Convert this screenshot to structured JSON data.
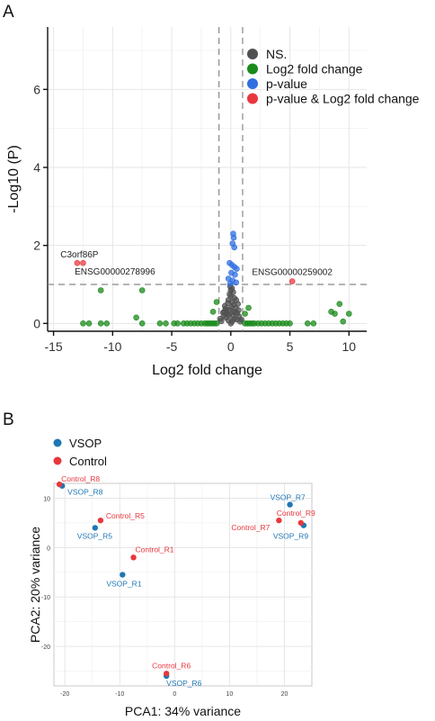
{
  "panels": {
    "a": "A",
    "b": "B"
  },
  "chart_data": [
    {
      "type": "scatter",
      "title": "",
      "xlabel": "Log2 fold change",
      "ylabel": "-Log10 (P)",
      "xlim": [
        -15.5,
        11.5
      ],
      "ylim": [
        -0.2,
        7.6
      ],
      "xticks": [
        -15,
        -10,
        -5,
        0,
        5,
        10
      ],
      "xtick_labels": [
        "-15",
        "-10",
        "-5",
        "0",
        "5",
        "10"
      ],
      "yticks": [
        0,
        2,
        4,
        6
      ],
      "ytick_labels": [
        "0",
        "2",
        "4",
        "6"
      ],
      "threshold_lines": {
        "x": [
          -1,
          1
        ],
        "y": 1
      },
      "grid": true,
      "legend_position": "top-right",
      "legend": [
        {
          "label": "NS.",
          "color": "#505050"
        },
        {
          "label": "Log2 fold change",
          "color": "#1a8a1a"
        },
        {
          "label": "p-value",
          "color": "#2f6fe0"
        },
        {
          "label": "p-value & Log2 fold change",
          "color": "#e8383d"
        }
      ],
      "series": [
        {
          "name": "NS.",
          "color": "#505050",
          "points": [
            [
              0,
              0
            ],
            [
              0.1,
              0.05
            ],
            [
              -0.2,
              0.08
            ],
            [
              0.3,
              0.12
            ],
            [
              -0.4,
              0.15
            ],
            [
              0.5,
              0.1
            ],
            [
              -0.6,
              0.2
            ],
            [
              0.7,
              0.18
            ],
            [
              -0.3,
              0.25
            ],
            [
              0.2,
              0.3
            ],
            [
              -0.1,
              0.35
            ],
            [
              0.4,
              0.4
            ],
            [
              -0.5,
              0.45
            ],
            [
              0.6,
              0.5
            ],
            [
              0.1,
              0.55
            ],
            [
              -0.2,
              0.6
            ],
            [
              0.3,
              0.65
            ],
            [
              0,
              0.7
            ],
            [
              -0.1,
              0.75
            ],
            [
              0.2,
              0.8
            ],
            [
              0,
              0.85
            ],
            [
              0.1,
              0.9
            ],
            [
              -0.05,
              0.95
            ],
            [
              0.8,
              0.05
            ],
            [
              -0.8,
              0.06
            ],
            [
              0.9,
              0.1
            ],
            [
              -0.9,
              0.12
            ],
            [
              0.15,
              0.2
            ],
            [
              -0.15,
              0.22
            ],
            [
              0.35,
              0.28
            ],
            [
              -0.35,
              0.32
            ],
            [
              0.55,
              0.26
            ],
            [
              -0.55,
              0.3
            ],
            [
              0.05,
              0.42
            ],
            [
              0.25,
              0.48
            ],
            [
              -0.25,
              0.52
            ],
            [
              0.45,
              0.6
            ],
            [
              -0.45,
              0.38
            ],
            [
              0.65,
              0.34
            ],
            [
              -0.65,
              0.28
            ]
          ]
        },
        {
          "name": "Log2 fold change",
          "color": "#1a8a1a",
          "points": [
            [
              -12.5,
              0
            ],
            [
              -12,
              0
            ],
            [
              -11,
              0
            ],
            [
              -10.5,
              0
            ],
            [
              -8,
              0.15
            ],
            [
              -7.5,
              0
            ],
            [
              -6,
              0
            ],
            [
              -5.5,
              0
            ],
            [
              -4.8,
              0
            ],
            [
              -4.5,
              0
            ],
            [
              -4,
              0
            ],
            [
              -3.7,
              0
            ],
            [
              -3.4,
              0
            ],
            [
              -3.1,
              0
            ],
            [
              -2.8,
              0
            ],
            [
              -2.5,
              0
            ],
            [
              -2.2,
              0
            ],
            [
              -2,
              0
            ],
            [
              -1.8,
              0
            ],
            [
              -1.6,
              0
            ],
            [
              -1.4,
              0
            ],
            [
              -1.2,
              0
            ],
            [
              1.2,
              0
            ],
            [
              1.4,
              0
            ],
            [
              1.6,
              0
            ],
            [
              1.8,
              0
            ],
            [
              2,
              0
            ],
            [
              2.3,
              0
            ],
            [
              2.6,
              0
            ],
            [
              2.9,
              0
            ],
            [
              3.2,
              0
            ],
            [
              3.5,
              0
            ],
            [
              3.8,
              0
            ],
            [
              4.1,
              0
            ],
            [
              4.4,
              0
            ],
            [
              4.7,
              0
            ],
            [
              5,
              0
            ],
            [
              6.5,
              0
            ],
            [
              7,
              0
            ],
            [
              8.5,
              0.3
            ],
            [
              8.8,
              0.25
            ],
            [
              9.2,
              0.5
            ],
            [
              9.5,
              0.05
            ],
            [
              10,
              0.25
            ],
            [
              -11,
              0.85
            ],
            [
              -7.5,
              0.85
            ],
            [
              -1.2,
              0.55
            ],
            [
              -1.5,
              0.3
            ],
            [
              1.5,
              0.4
            ],
            [
              1.2,
              0.25
            ]
          ]
        },
        {
          "name": "p-value",
          "color": "#2f6fe0",
          "points": [
            [
              0.2,
              2.3
            ],
            [
              0.25,
              2.2
            ],
            [
              0.15,
              2.05
            ],
            [
              0.3,
              1.95
            ],
            [
              -0.1,
              1.55
            ],
            [
              0.1,
              1.5
            ],
            [
              0.3,
              1.45
            ],
            [
              0.5,
              1.4
            ],
            [
              0.05,
              1.3
            ],
            [
              0.35,
              1.25
            ],
            [
              -0.2,
              1.15
            ],
            [
              0.15,
              1.1
            ],
            [
              0.45,
              1.05
            ],
            [
              -0.05,
              1.02
            ]
          ]
        },
        {
          "name": "p-value & Log2 fold change",
          "color": "#e8383d",
          "points": [
            [
              -13,
              1.55
            ],
            [
              -12.5,
              1.55
            ],
            [
              5.2,
              1.08
            ]
          ]
        }
      ],
      "annotations": [
        {
          "text": "C3orf86P",
          "x": -13.2,
          "y": 1.55
        },
        {
          "text": "ENSG00000278996",
          "x": -12.6,
          "y": 1.55
        },
        {
          "text": "ENSG00000259002",
          "x": 5.2,
          "y": 1.08
        }
      ]
    },
    {
      "type": "scatter",
      "title": "",
      "xlabel": "PCA1: 34% variance",
      "ylabel": "PCA2: 20% variance",
      "xlim": [
        -22,
        25
      ],
      "ylim": [
        -28,
        13
      ],
      "xticks": [
        -20,
        -10,
        0,
        10,
        20
      ],
      "xtick_labels": [
        "-20",
        "-10",
        "0",
        "10",
        "20"
      ],
      "yticks": [
        -20,
        -10,
        0,
        10
      ],
      "ytick_labels": [
        "-20",
        "-10",
        "0",
        "10"
      ],
      "grid": true,
      "legend_position": "top-left",
      "legend": [
        {
          "label": "VSOP",
          "color": "#1f77b4"
        },
        {
          "label": "Control",
          "color": "#e8383d"
        }
      ],
      "series": [
        {
          "name": "VSOP",
          "color": "#1f77b4",
          "points": [
            {
              "label": "VSOP_R8",
              "x": -20.5,
              "y": 12.5
            },
            {
              "label": "VSOP_R5",
              "x": -14.5,
              "y": 4
            },
            {
              "label": "VSOP_R1",
              "x": -9.5,
              "y": -5.5
            },
            {
              "label": "VSOP_R6",
              "x": -1.5,
              "y": -26
            },
            {
              "label": "VSOP_R7",
              "x": 21,
              "y": 8.7
            },
            {
              "label": "VSOP_R9",
              "x": 23.5,
              "y": 4.5
            }
          ]
        },
        {
          "name": "Control",
          "color": "#e8383d",
          "points": [
            {
              "label": "Control_R8",
              "x": -21,
              "y": 12.8
            },
            {
              "label": "Control_R5",
              "x": -13.5,
              "y": 5.5
            },
            {
              "label": "Control_R1",
              "x": -7.5,
              "y": -2
            },
            {
              "label": "Control_R6",
              "x": -1.5,
              "y": -25.5
            },
            {
              "label": "Control_R7",
              "x": 19,
              "y": 5.5
            },
            {
              "label": "Control_R9",
              "x": 23,
              "y": 5
            }
          ]
        }
      ]
    }
  ]
}
